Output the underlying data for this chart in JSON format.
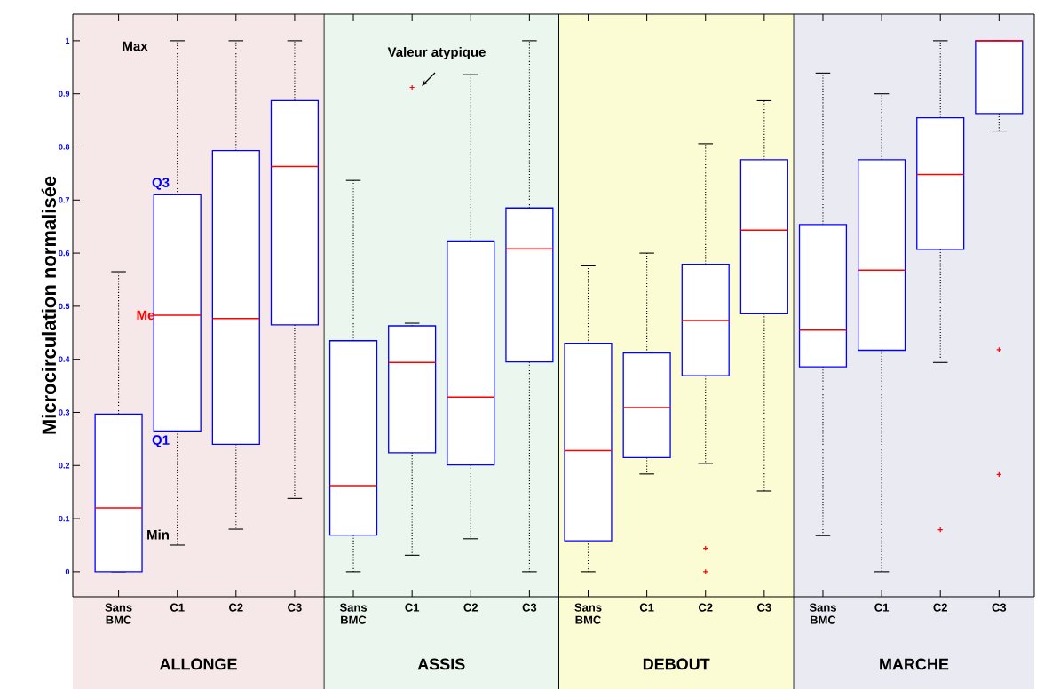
{
  "chart_data": {
    "type": "box",
    "ylabel": "Microcirculation normalisée",
    "categories": [
      "Sans BMC",
      "C1",
      "C2",
      "C3",
      "Sans BMC",
      "C1",
      "C2",
      "C3",
      "Sans BMC",
      "C1",
      "C2",
      "C3",
      "Sans BMC",
      "C1",
      "C2",
      "C3"
    ],
    "boxes": [
      {
        "low": 0,
        "q1": 0,
        "median": 0.12,
        "q3": 0.297,
        "high": 0.565
      },
      {
        "low": 0.05,
        "q1": 0.265,
        "median": 0.483,
        "q3": 0.71,
        "high": 1
      },
      {
        "low": 0.08,
        "q1": 0.24,
        "median": 0.477,
        "q3": 0.793,
        "high": 1
      },
      {
        "low": 0.138,
        "q1": 0.465,
        "median": 0.763,
        "q3": 0.887,
        "high": 1
      },
      {
        "low": 0,
        "q1": 0.069,
        "median": 0.162,
        "q3": 0.435,
        "high": 0.737
      },
      {
        "low": 0.031,
        "q1": 0.224,
        "median": 0.394,
        "q3": 0.463,
        "high": 0.468,
        "outliers": [
          0.912
        ]
      },
      {
        "low": 0.062,
        "q1": 0.201,
        "median": 0.329,
        "q3": 0.623,
        "high": 0.936
      },
      {
        "low": 0,
        "q1": 0.395,
        "median": 0.608,
        "q3": 0.685,
        "high": 1
      },
      {
        "low": 0,
        "q1": 0.058,
        "median": 0.228,
        "q3": 0.43,
        "high": 0.576
      },
      {
        "low": 0.184,
        "q1": 0.215,
        "median": 0.309,
        "q3": 0.412,
        "high": 0.6
      },
      {
        "low": 0.204,
        "q1": 0.369,
        "median": 0.473,
        "q3": 0.579,
        "high": 0.806,
        "outliers": [
          0.044,
          0
        ]
      },
      {
        "low": 0.152,
        "q1": 0.486,
        "median": 0.643,
        "q3": 0.776,
        "high": 0.887
      },
      {
        "low": 0.068,
        "q1": 0.386,
        "median": 0.455,
        "q3": 0.654,
        "high": 0.939
      },
      {
        "low": 0,
        "q1": 0.417,
        "median": 0.568,
        "q3": 0.776,
        "high": 0.9
      },
      {
        "low": 0.394,
        "q1": 0.607,
        "median": 0.748,
        "q3": 0.855,
        "high": 1,
        "outliers": [
          0.079
        ]
      },
      {
        "low": 0.83,
        "q1": 0.863,
        "median": 1,
        "q3": 1,
        "high": 1,
        "outliers": [
          0.418,
          0.183
        ]
      }
    ],
    "ylim": [
      -0.047,
      1.05
    ],
    "yticks": [
      0,
      0.1,
      0.2,
      0.3,
      0.4,
      0.5,
      0.6,
      0.7,
      0.8,
      0.9,
      1
    ],
    "annotations": [
      "Max",
      "Q3",
      "Me",
      "Q1",
      "Min",
      "Valeur atypique",
      "ALLONGE",
      "ASSIS",
      "DEBOUT",
      "MARCHE"
    ],
    "grid": false
  }
}
